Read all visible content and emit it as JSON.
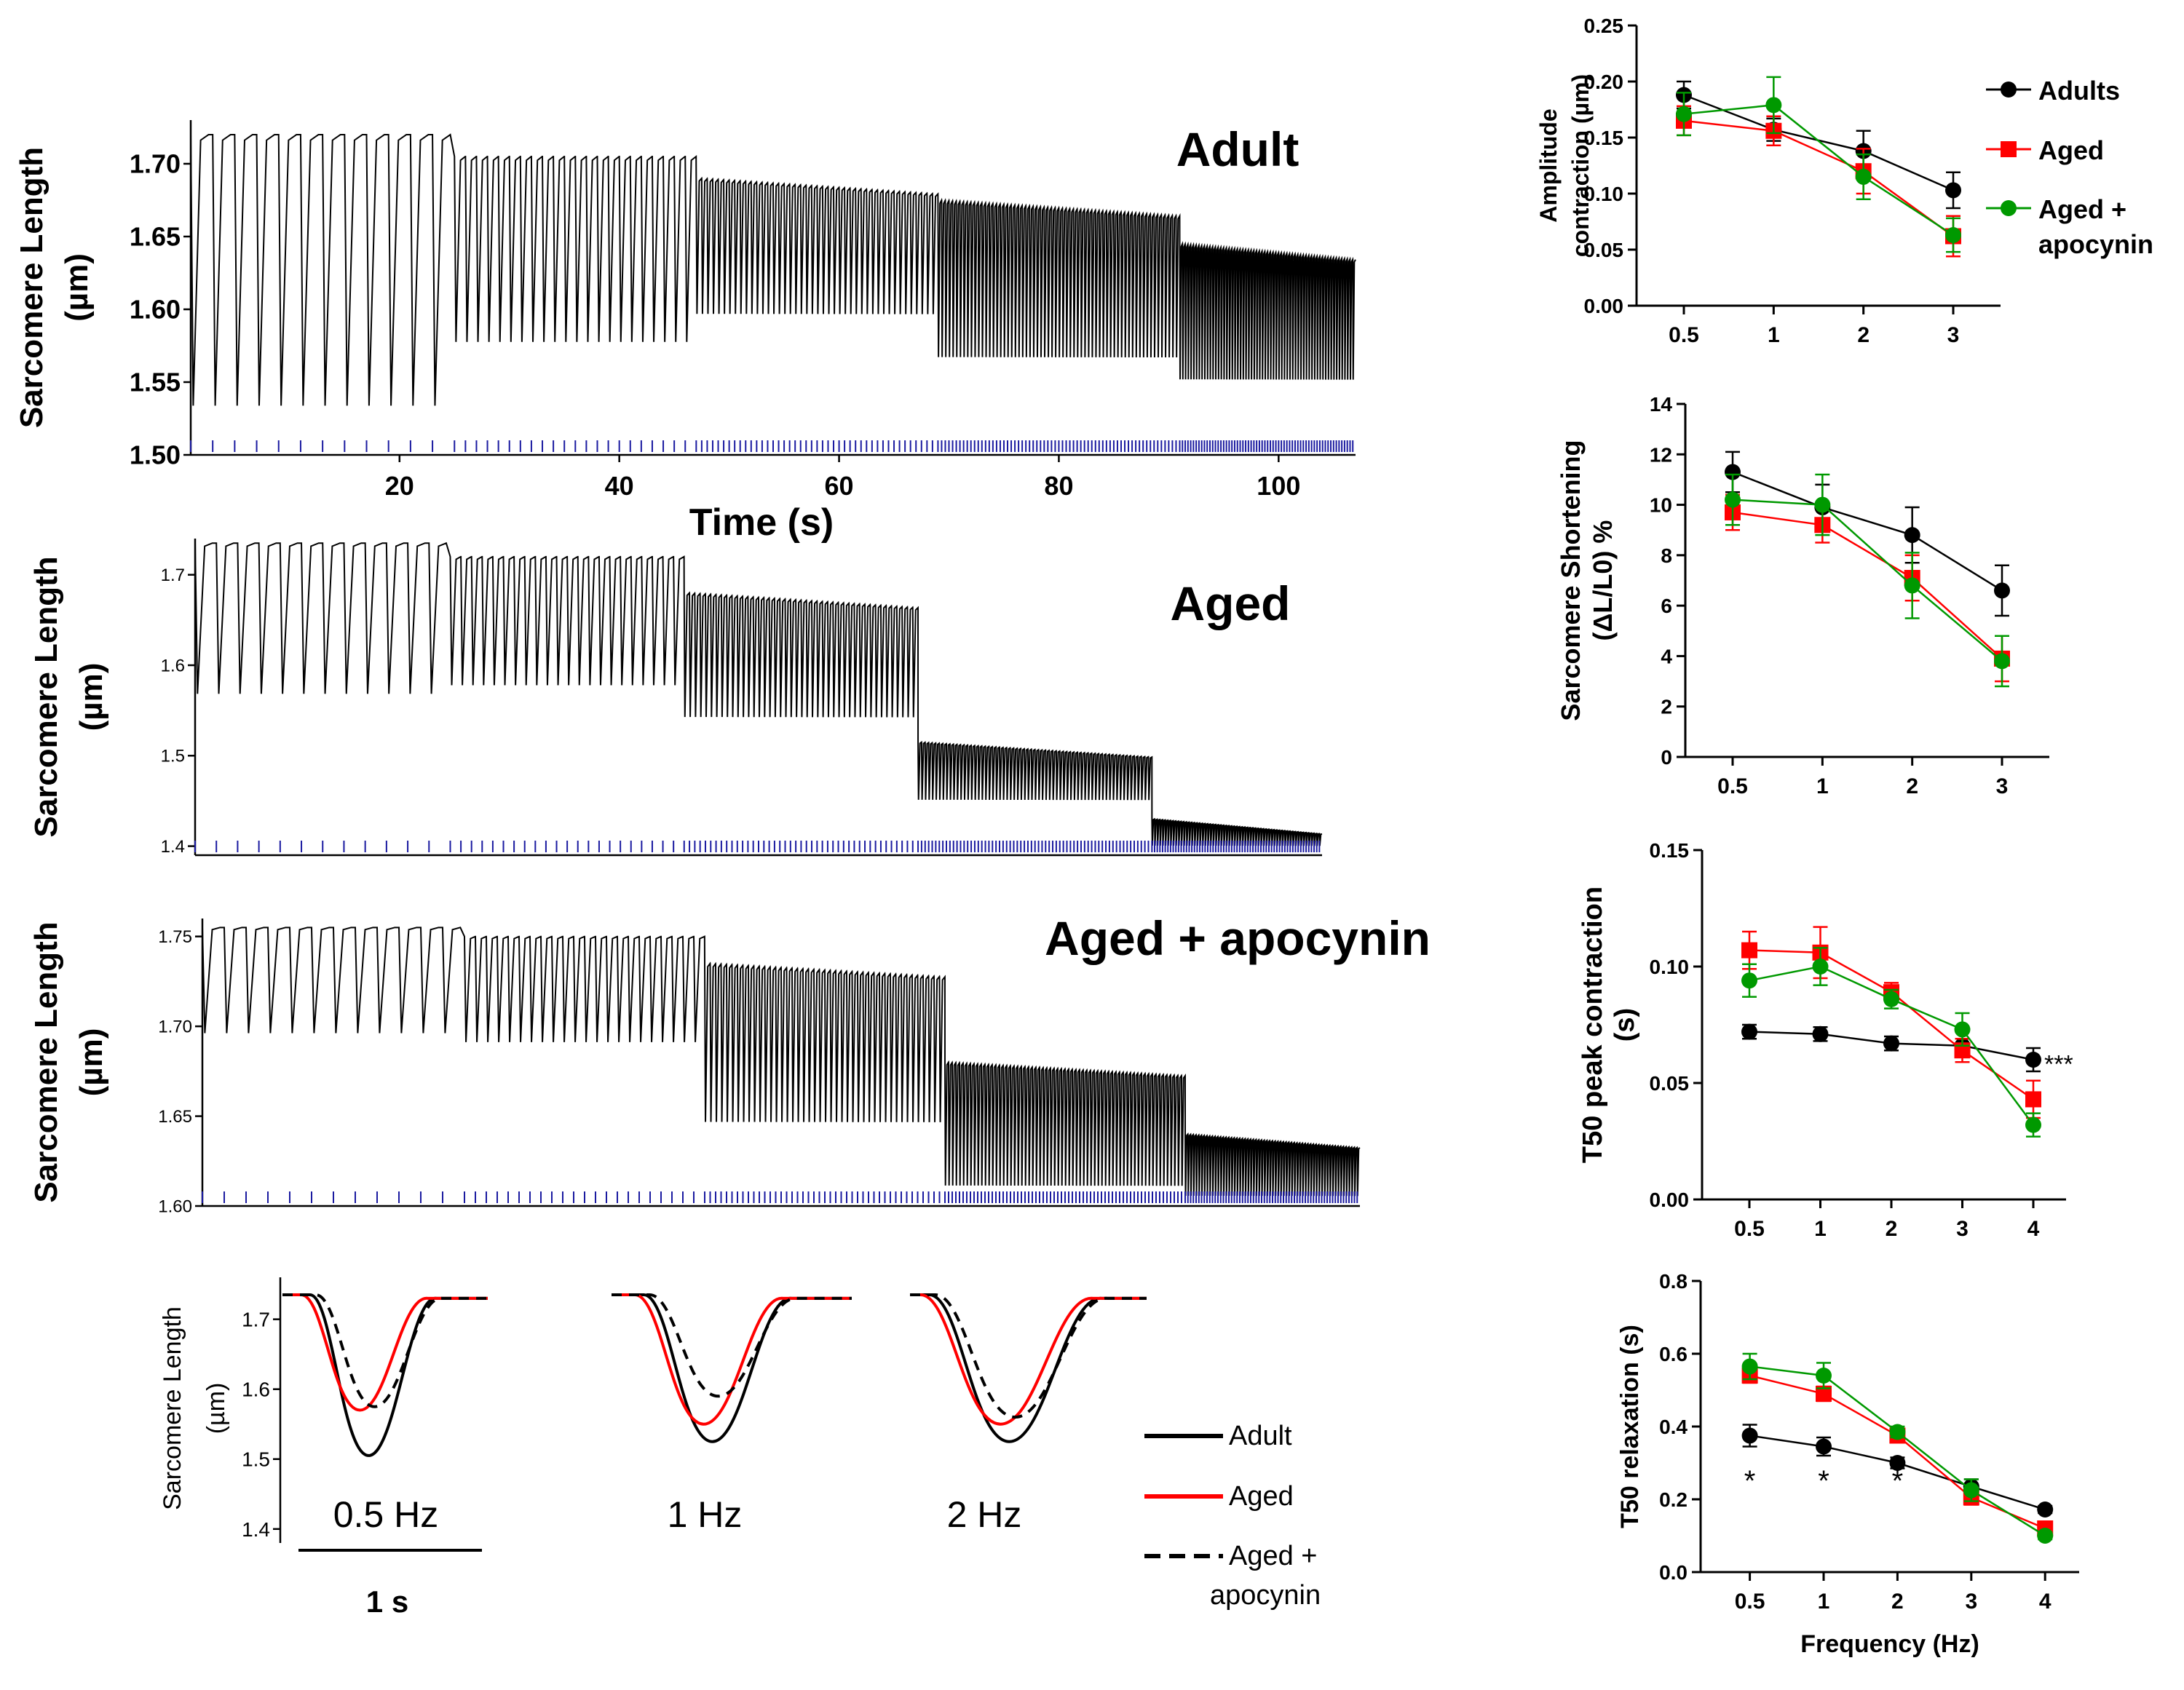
{
  "colors": {
    "adult": "#000000",
    "aged": "#ff0000",
    "apocynin": "#009900",
    "stim": "#1a1aa0"
  },
  "chart_data": [
    {
      "type": "line",
      "id": "trace-adult",
      "title": "Adult",
      "xlabel": "Time (s)",
      "ylabel": "Sarcomere Length (µm)",
      "ylim": [
        1.5,
        1.73
      ],
      "xlim": [
        1,
        107
      ],
      "yticks": [
        "1.70",
        "1.65",
        "1.60",
        "1.55",
        "1.50"
      ],
      "xticks": [
        "20",
        "40",
        "60",
        "80",
        "100"
      ],
      "segments": [
        {
          "t0": 1,
          "t1": 25,
          "hz": 0.5,
          "top": 1.72,
          "bottom": 1.53
        },
        {
          "t0": 25,
          "t1": 47,
          "hz": 1,
          "top": 1.705,
          "bottom": 1.575
        },
        {
          "t0": 47,
          "t1": 69,
          "hz": 2,
          "top": 1.69,
          "bottom": 1.595
        },
        {
          "t0": 69,
          "t1": 91,
          "hz": 3,
          "top": 1.675,
          "bottom": 1.565
        },
        {
          "t0": 91,
          "t1": 107,
          "hz": 4,
          "top": 1.645,
          "bottom": 1.55
        }
      ]
    },
    {
      "type": "line",
      "id": "trace-aged",
      "title": "Aged",
      "ylabel": "Sarcomere Length (µm)",
      "ylim": [
        1.39,
        1.74
      ],
      "xlim": [
        1,
        107
      ],
      "yticks": [
        "1.7",
        "1.6",
        "1.5",
        "1.4"
      ],
      "segments": [
        {
          "t0": 1,
          "t1": 25,
          "hz": 0.5,
          "top": 1.735,
          "bottom": 1.565
        },
        {
          "t0": 25,
          "t1": 47,
          "hz": 1,
          "top": 1.72,
          "bottom": 1.575
        },
        {
          "t0": 47,
          "t1": 69,
          "hz": 2,
          "top": 1.68,
          "bottom": 1.54
        },
        {
          "t0": 69,
          "t1": 91,
          "hz": 3,
          "top": 1.515,
          "bottom": 1.45
        },
        {
          "t0": 91,
          "t1": 107,
          "hz": 4,
          "top": 1.43,
          "bottom": 1.4
        }
      ]
    },
    {
      "type": "line",
      "id": "trace-apocynin",
      "title": "Aged + apocynin",
      "ylabel": "Sarcomere Length (µm)",
      "ylim": [
        1.6,
        1.76
      ],
      "xlim": [
        1,
        107
      ],
      "yticks": [
        "1.75",
        "1.70",
        "1.65",
        "1.60"
      ],
      "segments": [
        {
          "t0": 1,
          "t1": 25,
          "hz": 0.5,
          "top": 1.755,
          "bottom": 1.695
        },
        {
          "t0": 25,
          "t1": 47,
          "hz": 1,
          "top": 1.75,
          "bottom": 1.69
        },
        {
          "t0": 47,
          "t1": 69,
          "hz": 2,
          "top": 1.735,
          "bottom": 1.645
        },
        {
          "t0": 69,
          "t1": 91,
          "hz": 3,
          "top": 1.68,
          "bottom": 1.61
        },
        {
          "t0": 91,
          "t1": 107,
          "hz": 4,
          "top": 1.64,
          "bottom": 1.605
        }
      ]
    },
    {
      "type": "line",
      "id": "single-twitch",
      "ylabel": "Sarcomere Length (µm)",
      "ylim": [
        1.38,
        1.76
      ],
      "yticks": [
        "1.7",
        "1.6",
        "1.5",
        "1.4"
      ],
      "groups": [
        "0.5 Hz",
        "1 Hz",
        "2 Hz"
      ],
      "scalebar": "1 s",
      "series": [
        {
          "name": "Adult",
          "style": "solid",
          "color": "#000000",
          "minima": [
            1.505,
            1.525,
            1.525
          ]
        },
        {
          "name": "Aged",
          "style": "solid",
          "color": "#ff0000",
          "minima": [
            1.57,
            1.55,
            1.55
          ]
        },
        {
          "name": "Aged + apocynin",
          "style": "dashed",
          "color": "#000000",
          "minima": [
            1.575,
            1.59,
            1.56
          ]
        }
      ],
      "legend": [
        "Adult",
        "Aged",
        "Aged + apocynin"
      ]
    },
    {
      "type": "line",
      "id": "amplitude",
      "xlabel": "",
      "ylabel": "Amplitude contraction (µm)",
      "categories": [
        "0.5",
        "1",
        "2",
        "3"
      ],
      "ylim": [
        0,
        0.25
      ],
      "yticks": [
        "0.00",
        "0.05",
        "0.10",
        "0.15",
        "0.20",
        "0.25"
      ],
      "legend": [
        "Adults",
        "Aged",
        "Aged + apocynin"
      ],
      "series": [
        {
          "name": "Adults",
          "color": "#000000",
          "values": [
            0.188,
            0.157,
            0.138,
            0.103
          ],
          "err": [
            0.012,
            0.01,
            0.018,
            0.016
          ]
        },
        {
          "name": "Aged",
          "color": "#ff0000",
          "values": [
            0.165,
            0.156,
            0.12,
            0.062
          ],
          "err": [
            0.013,
            0.013,
            0.02,
            0.018
          ]
        },
        {
          "name": "Aged + apocynin",
          "color": "#009900",
          "values": [
            0.171,
            0.179,
            0.115,
            0.063
          ],
          "err": [
            0.019,
            0.025,
            0.02,
            0.015
          ]
        }
      ]
    },
    {
      "type": "line",
      "id": "shortening",
      "xlabel": "",
      "ylabel": "Sarcomere Shortening (ΔL/L0) %",
      "categories": [
        "0.5",
        "1",
        "2",
        "3"
      ],
      "ylim": [
        0,
        14
      ],
      "yticks": [
        "0",
        "2",
        "4",
        "6",
        "8",
        "10",
        "12",
        "14"
      ],
      "series": [
        {
          "name": "Adults",
          "color": "#000000",
          "values": [
            11.3,
            9.9,
            8.8,
            6.6
          ],
          "err": [
            0.8,
            0.9,
            1.1,
            1.0
          ]
        },
        {
          "name": "Aged",
          "color": "#ff0000",
          "values": [
            9.7,
            9.2,
            7.1,
            3.9
          ],
          "err": [
            0.7,
            0.7,
            0.9,
            0.9
          ]
        },
        {
          "name": "Aged + apocynin",
          "color": "#009900",
          "values": [
            10.2,
            10.0,
            6.8,
            3.8
          ],
          "err": [
            1.0,
            1.2,
            1.3,
            1.0
          ]
        }
      ]
    },
    {
      "type": "line",
      "id": "t50-peak",
      "xlabel": "",
      "ylabel": "T50 peak contraction (s)",
      "categories": [
        "0.5",
        "1",
        "2",
        "3",
        "4"
      ],
      "ylim": [
        0,
        0.15
      ],
      "yticks": [
        "0.00",
        "0.05",
        "0.10",
        "0.15"
      ],
      "annotation": "***",
      "series": [
        {
          "name": "Adults",
          "color": "#000000",
          "values": [
            0.072,
            0.071,
            0.067,
            0.066,
            0.06
          ],
          "err": [
            0.003,
            0.003,
            0.003,
            0.003,
            0.005
          ]
        },
        {
          "name": "Aged",
          "color": "#ff0000",
          "values": [
            0.107,
            0.106,
            0.089,
            0.064,
            0.043
          ],
          "err": [
            0.008,
            0.011,
            0.004,
            0.005,
            0.008
          ]
        },
        {
          "name": "Aged + apocynin",
          "color": "#009900",
          "values": [
            0.094,
            0.1,
            0.086,
            0.073,
            0.032
          ],
          "err": [
            0.007,
            0.008,
            0.004,
            0.007,
            0.005
          ]
        }
      ]
    },
    {
      "type": "line",
      "id": "t50-relax",
      "xlabel": "Frequency (Hz)",
      "ylabel": "T50 relaxation (s)",
      "categories": [
        "0.5",
        "1",
        "2",
        "3",
        "4"
      ],
      "ylim": [
        0,
        0.8
      ],
      "yticks": [
        "0.0",
        "0.2",
        "0.4",
        "0.6",
        "0.8"
      ],
      "annotations": [
        "*",
        "*",
        "*"
      ],
      "series": [
        {
          "name": "Adults",
          "color": "#000000",
          "values": [
            0.375,
            0.345,
            0.3,
            0.235,
            0.172
          ],
          "err": [
            0.03,
            0.025,
            0.015,
            0.02,
            0.01
          ]
        },
        {
          "name": "Aged",
          "color": "#ff0000",
          "values": [
            0.54,
            0.49,
            0.375,
            0.205,
            0.12
          ],
          "err": [
            0.02,
            0.02,
            0.015,
            0.02,
            0.01
          ]
        },
        {
          "name": "Aged + apocynin",
          "color": "#009900",
          "values": [
            0.565,
            0.54,
            0.385,
            0.225,
            0.1
          ],
          "err": [
            0.035,
            0.035,
            0.015,
            0.03,
            0.01
          ]
        }
      ]
    }
  ]
}
